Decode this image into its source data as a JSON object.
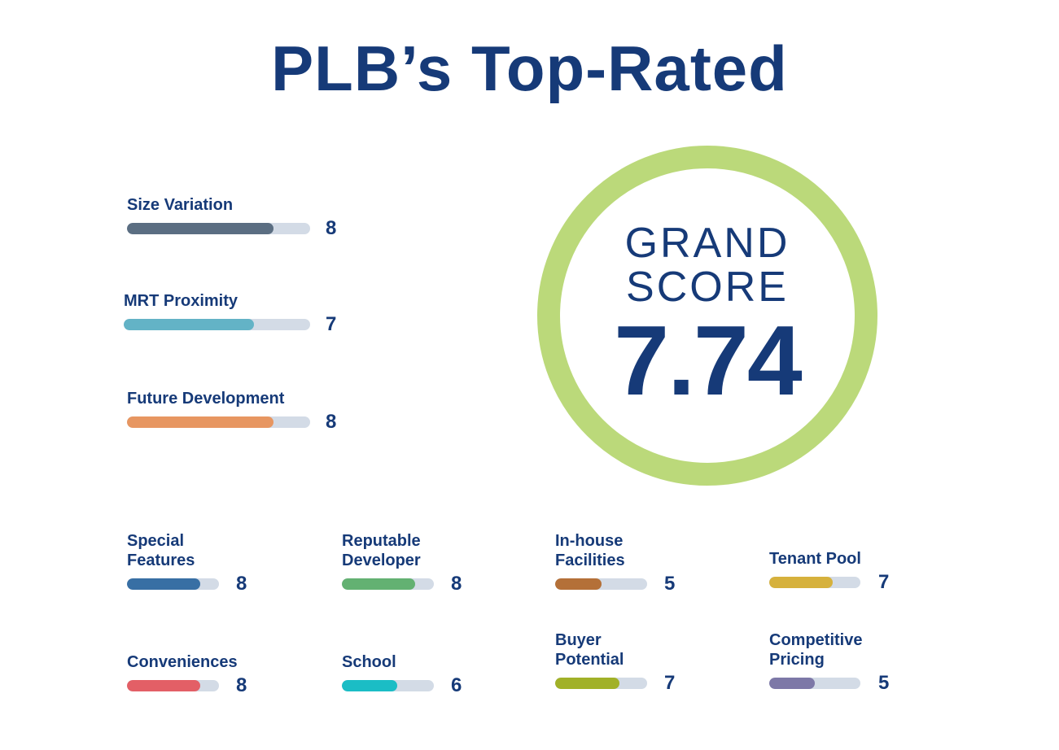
{
  "title": "PLB’s Top-Rated",
  "grand": {
    "label_line1": "GRAND",
    "label_line2": "SCORE",
    "score": "7.74"
  },
  "colors": {
    "title": "#163a78",
    "track": "#d3dbe6",
    "ring": "#bbd97a"
  },
  "chart_data": {
    "type": "bar",
    "scale_max": 10,
    "categories": [
      "Size Variation",
      "MRT Proximity",
      "Future Development",
      "Special Features",
      "Reputable Developer",
      "In-house Facilities",
      "Tenant Pool",
      "Conveniences",
      "School",
      "Buyer Potential",
      "Competitive Pricing"
    ],
    "values": [
      8,
      7,
      8,
      8,
      8,
      5,
      7,
      8,
      6,
      7,
      5
    ],
    "colors": [
      "#5b6e82",
      "#63b3c6",
      "#e79661",
      "#386fa4",
      "#63b172",
      "#b47038",
      "#d6b13c",
      "#e35f66",
      "#1bbdc5",
      "#a1b128",
      "#7d78a7"
    ]
  },
  "metrics": [
    {
      "label": "Size Variation",
      "score": "8"
    },
    {
      "label": "MRT Proximity",
      "score": "7"
    },
    {
      "label": "Future Development",
      "score": "8"
    },
    {
      "label": "Special Features",
      "score": "8"
    },
    {
      "label": "Reputable Developer",
      "score": "8"
    },
    {
      "label": "In-house Facilities",
      "score": "5"
    },
    {
      "label": "Tenant Pool",
      "score": "7"
    },
    {
      "label": "Conveniences",
      "score": "8"
    },
    {
      "label": "School",
      "score": "6"
    },
    {
      "label": "Buyer Potential",
      "score": "7"
    },
    {
      "label": "Competitive Pricing",
      "score": "5"
    }
  ]
}
